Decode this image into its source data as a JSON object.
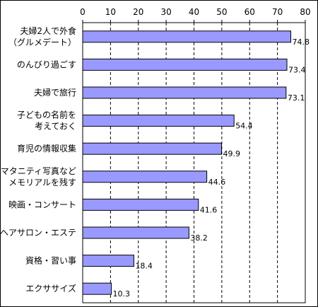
{
  "chart_data": {
    "type": "bar",
    "orientation": "horizontal",
    "title": "",
    "xlabel": "",
    "ylabel": "",
    "categories": [
      [
        "夫婦2人で外食",
        "（グルメデート）"
      ],
      [
        "のんびり過ごす"
      ],
      [
        "夫婦で旅行"
      ],
      [
        "子どもの名前を",
        "考えておく"
      ],
      [
        "育児の情報収集"
      ],
      [
        "マタニティ写真など",
        "メモリアルを残す"
      ],
      [
        "映画・コンサート"
      ],
      [
        "ヘアサロン・エステ"
      ],
      [
        "資格・習い事"
      ],
      [
        "エクササイズ"
      ]
    ],
    "values": [
      74.8,
      73.4,
      73.1,
      54.4,
      49.9,
      44.6,
      41.6,
      38.2,
      18.4,
      10.3
    ],
    "value_labels": [
      "74.8",
      "73.4",
      "73.1",
      "54.4",
      "49.9",
      "44.6",
      "41.6",
      "38.2",
      "18.4",
      "10.3"
    ],
    "xlim": [
      0,
      80
    ],
    "xticks": [
      "0",
      "10",
      "20",
      "30",
      "40",
      "50",
      "60",
      "70",
      "80"
    ],
    "tick_values": [
      0,
      10,
      20,
      30,
      40,
      50,
      60,
      70,
      80
    ],
    "grid": "vertical dashed",
    "legend": "none",
    "colors": {
      "bar_fill": "#9999ff",
      "bar_stroke": "#000000",
      "grid": "#000000",
      "background": "#ffffff"
    }
  }
}
